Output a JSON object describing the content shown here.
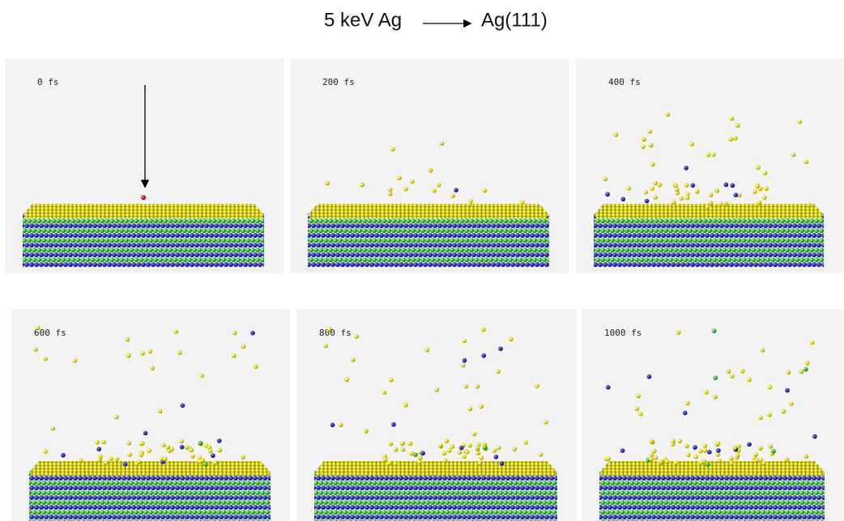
{
  "title": {
    "projectile": "5 keV Ag",
    "target": "Ag(111)"
  },
  "panels": [
    {
      "label": "0 fs"
    },
    {
      "label": "200 fs"
    },
    {
      "label": "400 fs"
    },
    {
      "label": "600 fs"
    },
    {
      "label": "800 fs"
    },
    {
      "label": "1000 fs"
    }
  ]
}
